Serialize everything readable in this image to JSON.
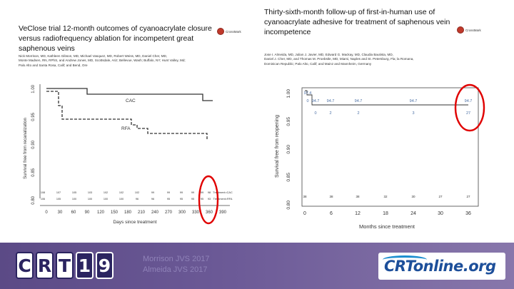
{
  "left_paper": {
    "title_lines": [
      "VeClose trial 12-month outcomes of cyanoacrylate closure",
      "versus radiofrequency ablation for incompetent great",
      "saphenous veins"
    ],
    "authors_lines": [
      "Nick Morrison, MD, Kathleen Gibson, MD, Michael Vasquez, MD, Robert Weiss, MD, Daniel Cher, MD,",
      "Monte Madsen, RN, RPhS, and Andrew Jones, MD, Scottsdale, Ariz; Bellevue, Wash; Buffalo, NY; Hunt Valley, Md;",
      "Palo Alto and Santa Rosa, Calif; and Bend, Ore"
    ],
    "crossmark": "CrossMark",
    "chart": {
      "ylabel": "Survival free from recanalization",
      "xlabel": "Days since treatment",
      "yticks": [
        "1.00",
        "0.95",
        "0.90",
        "0.85",
        "0.80"
      ],
      "xticks": [
        "0",
        "30",
        "60",
        "90",
        "120",
        "150",
        "180",
        "210",
        "240",
        "270",
        "300",
        "330",
        "360",
        "390"
      ],
      "cac_label": "CAC",
      "rfa_label": "RFA",
      "risk_cac": [
        "108",
        "107",
        "105",
        "103",
        "102",
        "102",
        "102",
        "99",
        "99",
        "99",
        "99",
        "99",
        "98"
      ],
      "risk_rfa": [
        "106",
        "105",
        "100",
        "100",
        "100",
        "100",
        "96",
        "96",
        "95",
        "95",
        "95",
        "95",
        "93"
      ],
      "risk_cac_label": "Treatment=CAC",
      "risk_rfa_label": "Treatment=RFA"
    }
  },
  "right_paper": {
    "title_lines": [
      "Thirty-sixth-month follow-up of first-in-human use of",
      "cyanoacrylate adhesive for treatment of saphenous vein",
      "incompetence"
    ],
    "authors_lines": [
      "Jose I. Almeida, MD, Julian J. Javier, MD, Edward G. Mackay, MD, Claudia Bautista, MD,",
      "Daniel J. Cher, MD, and Thomas M. Proebstle, MD, Miami, Naples and St. Petersburg, Fla; la Romana,",
      "Dominican Republic; Palo Alto, Calif; and Mainz and Mannheim, Germany"
    ],
    "crossmark": "CrossMark",
    "chart": {
      "ylabel": "Survival free from reopening",
      "xlabel": "Months since treatment",
      "yticks": [
        "1.00",
        "0.95",
        "0.90",
        "0.85",
        "0.80"
      ],
      "xticks": [
        "0",
        "6",
        "12",
        "18",
        "24",
        "30",
        "36"
      ],
      "point_labels": [
        "97.4",
        "94.7",
        "94.7",
        "94.7",
        "94.7",
        "94.7"
      ],
      "point_counts": [
        "0",
        "0",
        "2",
        "2",
        "3",
        "27"
      ],
      "risk_row": [
        "38",
        "38",
        "38",
        "32",
        "30",
        "27",
        "27"
      ]
    }
  },
  "footer": {
    "logo_letters": [
      "C",
      "R",
      "T",
      "1",
      "9"
    ],
    "citation_1": "Morrison JVS 2017",
    "citation_2": "Almeida JVS 2017",
    "crtonline": "CRTonline.org"
  },
  "colors": {
    "highlight_circle": "#e00000",
    "footer_purple": "#6c5a97",
    "crt_navy": "#2b2460",
    "crtonline_blue": "#1d4f9a"
  }
}
